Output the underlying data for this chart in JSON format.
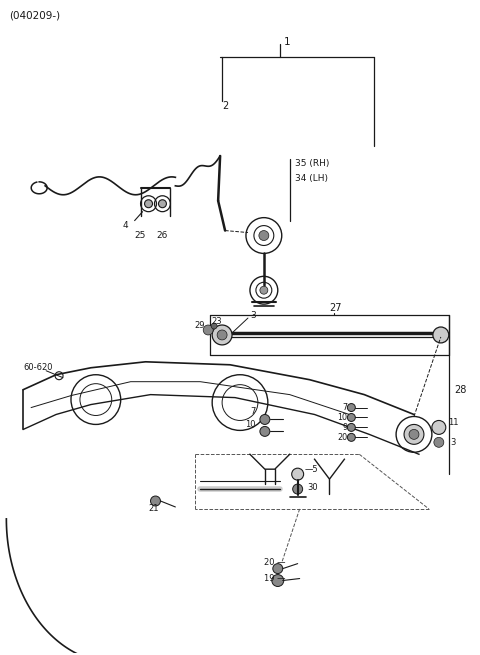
{
  "bg_color": "#ffffff",
  "lc": "#1a1a1a",
  "title": "(040209-)",
  "fig_w": 4.8,
  "fig_h": 6.55,
  "dpi": 100
}
